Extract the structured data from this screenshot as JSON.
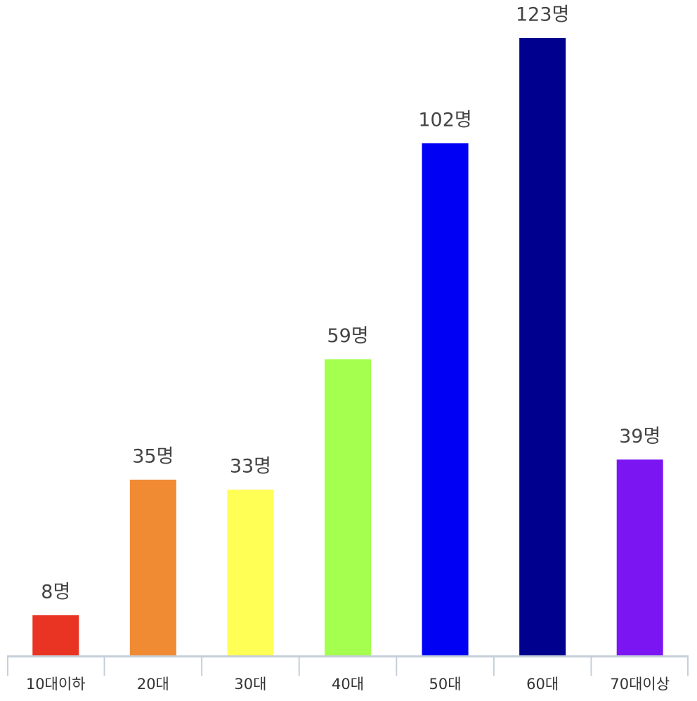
{
  "chart_data": {
    "type": "bar",
    "categories": [
      "10대이하",
      "20대",
      "30대",
      "40대",
      "50대",
      "60대",
      "70대이상"
    ],
    "values": [
      8,
      35,
      33,
      59,
      102,
      123,
      39
    ],
    "value_labels": [
      "8명",
      "35명",
      "33명",
      "59명",
      "102명",
      "123명",
      "39명"
    ],
    "colors": [
      "#e93323",
      "#f08a33",
      "#ffff55",
      "#a4ff4f",
      "#0000f5",
      "#00008f",
      "#7b16f3"
    ]
  }
}
